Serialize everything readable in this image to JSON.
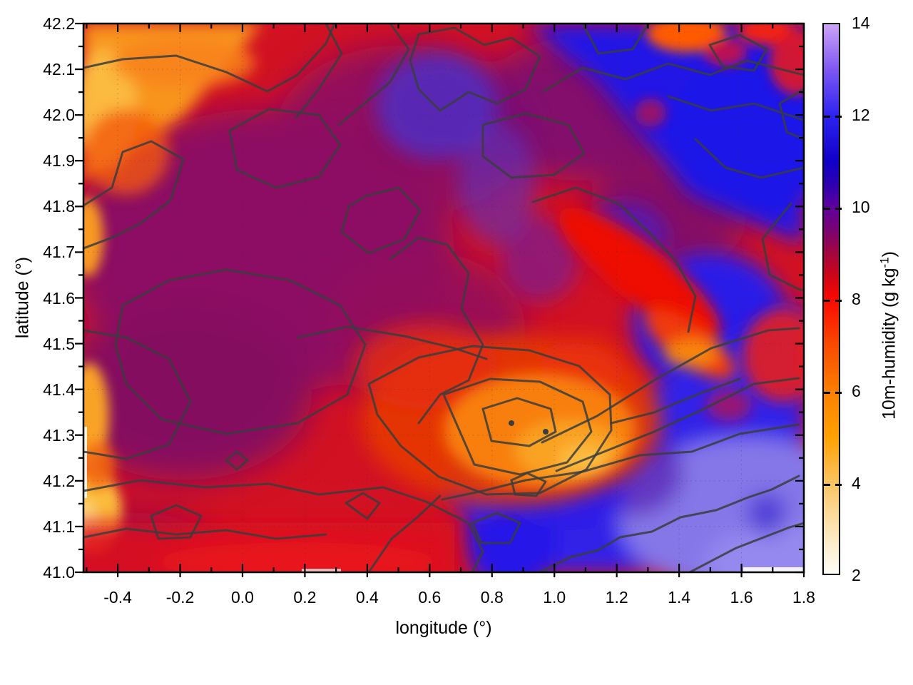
{
  "axes": {
    "x": {
      "label": "longitude (°)",
      "min": -0.51,
      "max": 1.8,
      "minor_step": 0.1,
      "tick_values": [
        -0.4,
        -0.2,
        0.0,
        0.2,
        0.4,
        0.6,
        0.8,
        1.0,
        1.2,
        1.4,
        1.6,
        1.8
      ],
      "tick_labels": [
        "-0.4",
        "-0.2",
        "0.0",
        "0.2",
        "0.4",
        "0.6",
        "0.8",
        "1.0",
        "1.2",
        "1.4",
        "1.6",
        "1.8"
      ]
    },
    "y": {
      "label": "latitude (°)",
      "min": 41.0,
      "max": 42.2,
      "minor_step": 0.05,
      "tick_values": [
        42.2,
        42.1,
        42.0,
        41.9,
        41.8,
        41.7,
        41.6,
        41.5,
        41.4,
        41.3,
        41.2,
        41.1,
        41.0
      ],
      "tick_labels": [
        "42.2",
        "42.1",
        "42.0",
        "41.9",
        "41.8",
        "41.7",
        "41.6",
        "41.5",
        "41.4",
        "41.3",
        "41.2",
        "41.1",
        "41.0"
      ]
    }
  },
  "colorbar": {
    "label_text": "10m-humidity (g kg",
    "label_sup": "-1",
    "label_close": ")",
    "min": 2,
    "max": 14,
    "tick_values": [
      14,
      12,
      10,
      8,
      6,
      4,
      2
    ],
    "tick_labels": [
      "14",
      "12",
      "10",
      "8",
      "6",
      "4",
      "2"
    ],
    "dash_values": [
      12,
      10,
      8,
      6,
      4
    ],
    "gradient_stops": [
      [
        "#CBA4F7",
        0
      ],
      [
        "#7E57F2",
        8.3
      ],
      [
        "#2D23F0",
        16.7
      ],
      [
        "#1000C8",
        25
      ],
      [
        "#2D00B0",
        29.2
      ],
      [
        "#5F009F",
        33.3
      ],
      [
        "#7A0370",
        37.5
      ],
      [
        "#A2073F",
        41.7
      ],
      [
        "#CC0617",
        45.8
      ],
      [
        "#F90800",
        50
      ],
      [
        "#FA4A00",
        58.3
      ],
      [
        "#FB7F00",
        66.7
      ],
      [
        "#FFA000",
        75
      ],
      [
        "#FAC35F",
        83.3
      ],
      [
        "#FCE4B2",
        91.7
      ],
      [
        "#FFFEF8",
        100
      ]
    ]
  },
  "chart_data": {
    "type": "heatmap",
    "title": "",
    "xlabel": "longitude (°)",
    "ylabel": "latitude (°)",
    "colorbar_label": "10m-humidity (g kg^-1)",
    "xlim": [
      -0.51,
      1.8
    ],
    "ylim": [
      41.0,
      42.2
    ],
    "clim": [
      2,
      14
    ],
    "x_ticks": [
      -0.4,
      -0.2,
      0.0,
      0.2,
      0.4,
      0.6,
      0.8,
      1.0,
      1.2,
      1.4,
      1.6,
      1.8
    ],
    "y_ticks": [
      41.0,
      41.1,
      41.2,
      41.3,
      41.4,
      41.5,
      41.6,
      41.7,
      41.8,
      41.9,
      42.0,
      42.1,
      42.2
    ],
    "colorbar_ticks": [
      2,
      4,
      6,
      8,
      10,
      12,
      14
    ],
    "palette_anchor_colors": [
      [
        "2",
        "#FFFEF8"
      ],
      [
        "4",
        "#FAC35F"
      ],
      [
        "6",
        "#FB7F00"
      ],
      [
        "8",
        "#F90800"
      ],
      [
        "10",
        "#5F009F"
      ],
      [
        "12",
        "#2D23F0"
      ],
      [
        "14",
        "#CBA4F7"
      ]
    ],
    "overlay": "dark gray terrain contour lines; faint dotted graticule at major ticks",
    "grid_lon": [
      -0.4,
      -0.2,
      0.0,
      0.2,
      0.4,
      0.6,
      0.8,
      1.0,
      1.2,
      1.4,
      1.6,
      1.8
    ],
    "grid_lat": [
      42.2,
      42.05,
      41.9,
      41.75,
      41.6,
      41.45,
      41.3,
      41.15,
      41.0
    ],
    "values_g_per_kg": [
      [
        5.0,
        7.5,
        8.5,
        9.0,
        9.0,
        9.5,
        10.0,
        11.0,
        11.5,
        7.5,
        11.0,
        9.0
      ],
      [
        6.5,
        8.0,
        8.5,
        9.5,
        10.0,
        10.0,
        9.5,
        11.0,
        11.5,
        11.5,
        11.0,
        11.5
      ],
      [
        7.0,
        8.5,
        9.0,
        9.5,
        10.0,
        10.5,
        9.5,
        9.0,
        11.5,
        11.5,
        11.5,
        11.0
      ],
      [
        6.0,
        9.0,
        9.5,
        9.5,
        9.0,
        9.5,
        9.0,
        8.5,
        9.0,
        11.5,
        11.5,
        11.5
      ],
      [
        8.0,
        9.5,
        10.0,
        9.5,
        9.0,
        8.5,
        8.5,
        8.0,
        8.0,
        9.5,
        11.5,
        11.5
      ],
      [
        7.0,
        9.5,
        10.0,
        9.5,
        8.5,
        8.0,
        7.5,
        8.0,
        8.5,
        6.5,
        9.0,
        11.5
      ],
      [
        8.5,
        9.0,
        9.5,
        9.0,
        8.5,
        7.0,
        6.5,
        5.5,
        8.5,
        11.5,
        11.5,
        12.0
      ],
      [
        5.5,
        9.0,
        8.5,
        8.5,
        8.0,
        8.5,
        9.5,
        11.5,
        12.0,
        12.5,
        12.5,
        12.5
      ],
      [
        8.5,
        8.0,
        8.0,
        8.5,
        8.5,
        9.0,
        11.5,
        12.0,
        12.5,
        12.5,
        13.0,
        13.0
      ]
    ]
  }
}
